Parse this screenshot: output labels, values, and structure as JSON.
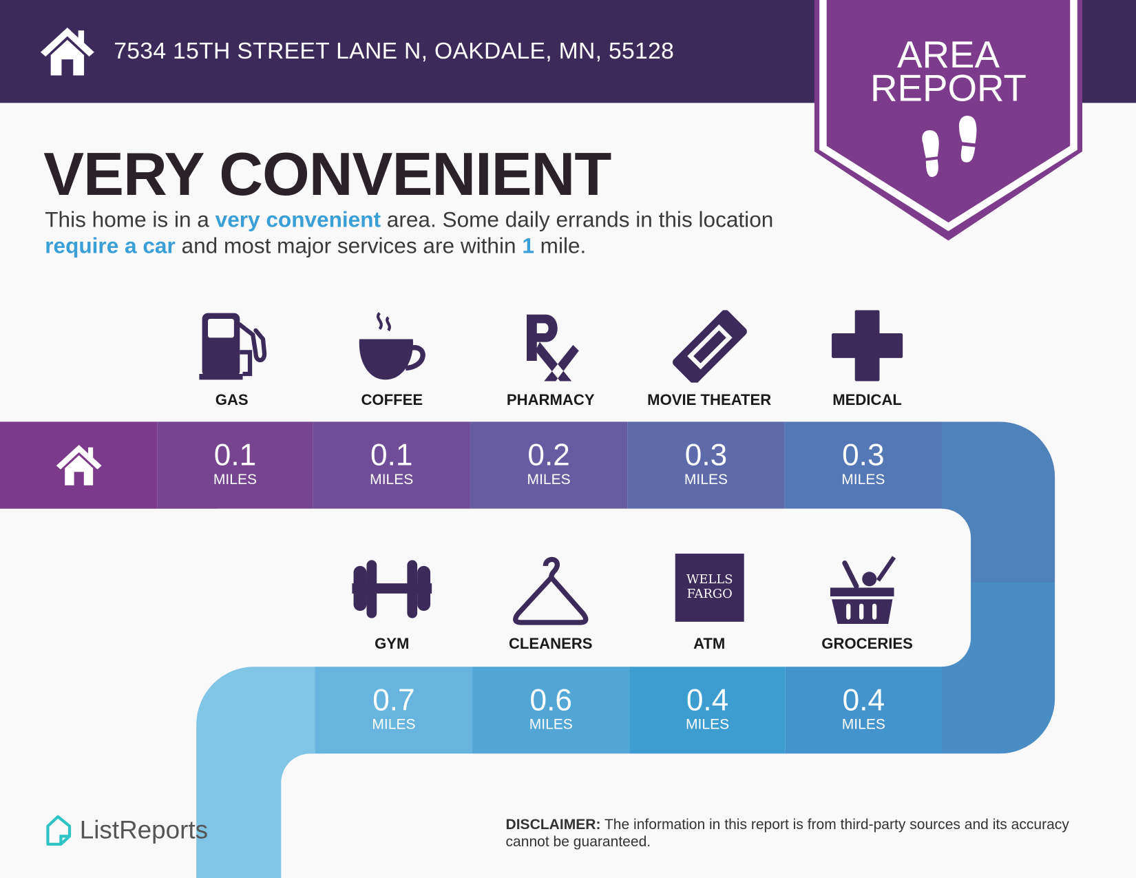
{
  "header": {
    "address": "7534 15TH STREET LANE N, OAKDALE, MN, 55128",
    "home_icon": "house-icon"
  },
  "badge": {
    "line1": "AREA",
    "line2": "REPORT",
    "icon": "footprints-icon"
  },
  "title": "VERY CONVENIENT",
  "intro": {
    "p1": "This home is in a ",
    "h1": "very convenient",
    "p2": " area. Some daily errands in this location ",
    "h2": "require a car",
    "p3": " and most major services are within ",
    "h3": "1",
    "p4": " mile."
  },
  "amenities_row1": [
    {
      "label": "GAS",
      "distance": "0.1",
      "unit": "MILES",
      "icon": "gas-pump-icon"
    },
    {
      "label": "COFFEE",
      "distance": "0.1",
      "unit": "MILES",
      "icon": "coffee-cup-icon"
    },
    {
      "label": "PHARMACY",
      "distance": "0.2",
      "unit": "MILES",
      "icon": "rx-icon"
    },
    {
      "label": "MOVIE THEATER",
      "distance": "0.3",
      "unit": "MILES",
      "icon": "ticket-icon"
    },
    {
      "label": "MEDICAL",
      "distance": "0.3",
      "unit": "MILES",
      "icon": "medical-cross-icon"
    }
  ],
  "amenities_row2": [
    {
      "label": "GYM",
      "distance": "0.7",
      "unit": "MILES",
      "icon": "dumbbell-icon"
    },
    {
      "label": "CLEANERS",
      "distance": "0.6",
      "unit": "MILES",
      "icon": "hanger-icon"
    },
    {
      "label": "ATM",
      "distance": "0.4",
      "unit": "MILES",
      "icon": "wells-fargo-logo",
      "logo_line1": "WELLS",
      "logo_line2": "FARGO"
    },
    {
      "label": "GROCERIES",
      "distance": "0.4",
      "unit": "MILES",
      "icon": "grocery-basket-icon"
    }
  ],
  "footer": {
    "brand": "ListReports",
    "disclaimer_label": "DISCLAIMER:",
    "disclaimer_text": " The information in this report is from third-party sources and its accuracy cannot be guaranteed."
  },
  "colors": {
    "header": "#3c2a5a",
    "badge": "#7d3b8c",
    "accent": "#3a9fd6",
    "icon": "#3c2a5a"
  }
}
